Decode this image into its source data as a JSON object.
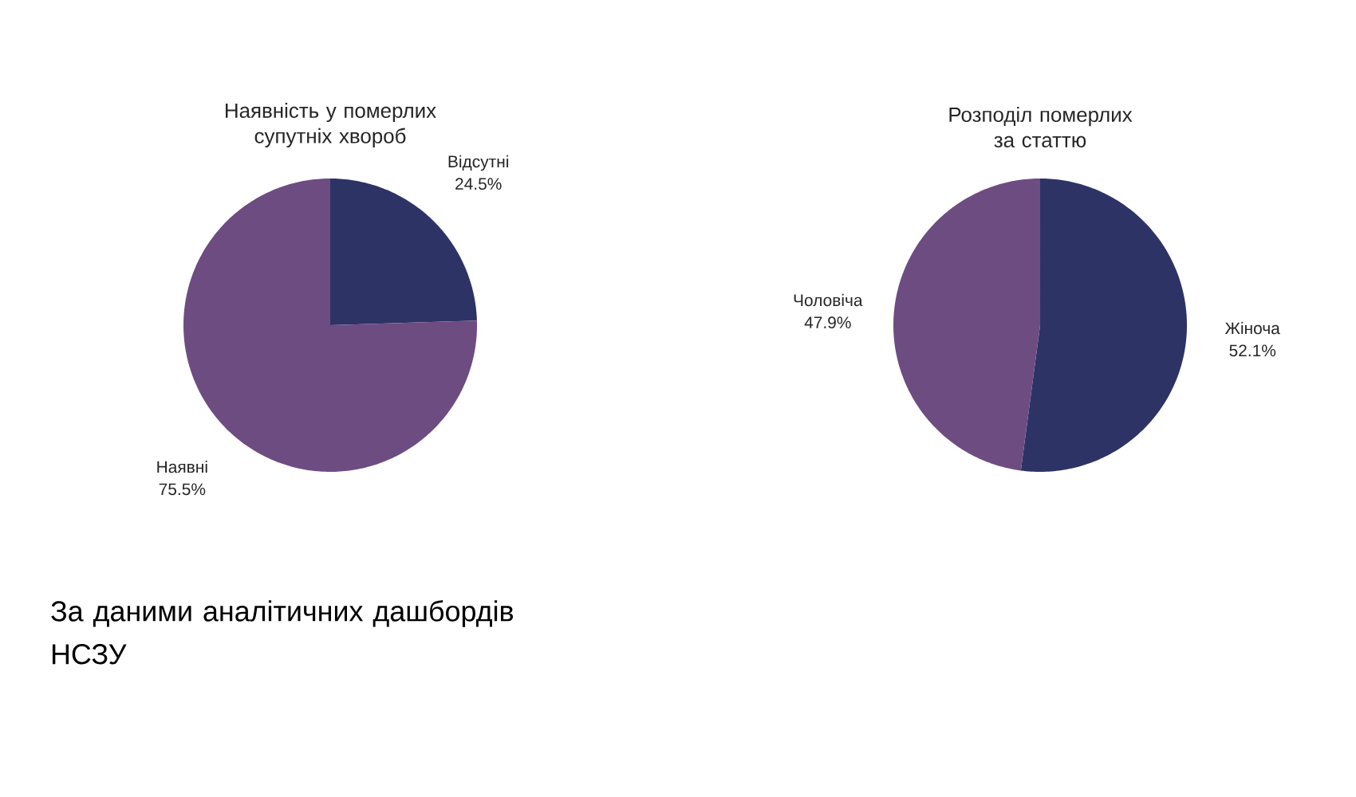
{
  "chart_data": [
    {
      "type": "pie",
      "title": "Наявність у померлих супутніх хвороб",
      "categories": [
        "Відсутні",
        "Наявні"
      ],
      "values": [
        24.5,
        75.5
      ],
      "value_labels": [
        "24.5%",
        "75.5%"
      ],
      "colors": [
        "#2e3366",
        "#6d4c82"
      ],
      "annotations": [
        "За даними аналітичних дашбордів НСЗУ"
      ]
    },
    {
      "type": "pie",
      "title": "Розподіл померлих за статтю",
      "categories": [
        "Жіноча",
        "Чоловіча"
      ],
      "values": [
        52.1,
        47.9
      ],
      "value_labels": [
        "52.1%",
        "47.9%"
      ],
      "colors": [
        "#2e3366",
        "#6d4c82"
      ]
    }
  ]
}
